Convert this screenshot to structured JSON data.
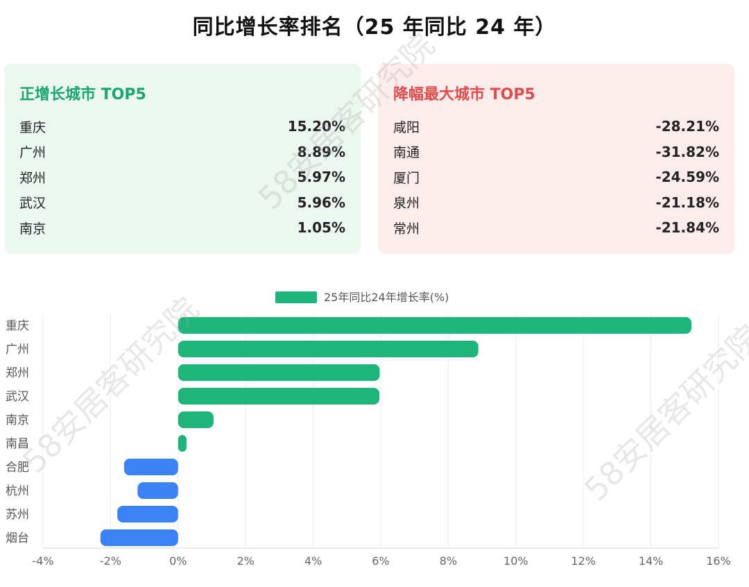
{
  "title": "同比增长率排名（25 年同比 24 年）",
  "positive_card": {
    "title": "正增长城市 TOP5",
    "items": [
      {
        "city": "重庆",
        "value": "15.20%"
      },
      {
        "city": "广州",
        "value": "8.89%"
      },
      {
        "city": "郑州",
        "value": "5.97%"
      },
      {
        "city": "武汉",
        "value": "5.96%"
      },
      {
        "city": "南京",
        "value": "1.05%"
      }
    ]
  },
  "negative_card": {
    "title": "降幅最大城市 TOP5",
    "items": [
      {
        "city": "咸阳",
        "value": "-28.21%"
      },
      {
        "city": "南通",
        "value": "-31.82%"
      },
      {
        "city": "厦门",
        "value": "-24.59%"
      },
      {
        "city": "泉州",
        "value": "-21.18%"
      },
      {
        "city": "常州",
        "value": "-21.84%"
      }
    ]
  },
  "watermark": "58安居客研究院",
  "chart_data": {
    "type": "bar",
    "orientation": "horizontal",
    "categories": [
      "重庆",
      "广州",
      "郑州",
      "武汉",
      "南京",
      "南昌",
      "合肥",
      "杭州",
      "苏州",
      "烟台"
    ],
    "series": [
      {
        "name": "25年同比24年增长率(%)",
        "values": [
          15.2,
          8.89,
          5.97,
          5.96,
          1.05,
          0.25,
          -1.6,
          -1.2,
          -1.8,
          -2.3
        ]
      }
    ],
    "xlim": [
      -4,
      16
    ],
    "xticks": [
      -4,
      -2,
      0,
      2,
      4,
      6,
      8,
      10,
      12,
      14,
      16
    ],
    "tick_suffix": "%",
    "legend_position": "top-center",
    "grid": true,
    "colors": {
      "positive": "#1db57a",
      "negative": "#3b82f6"
    }
  }
}
